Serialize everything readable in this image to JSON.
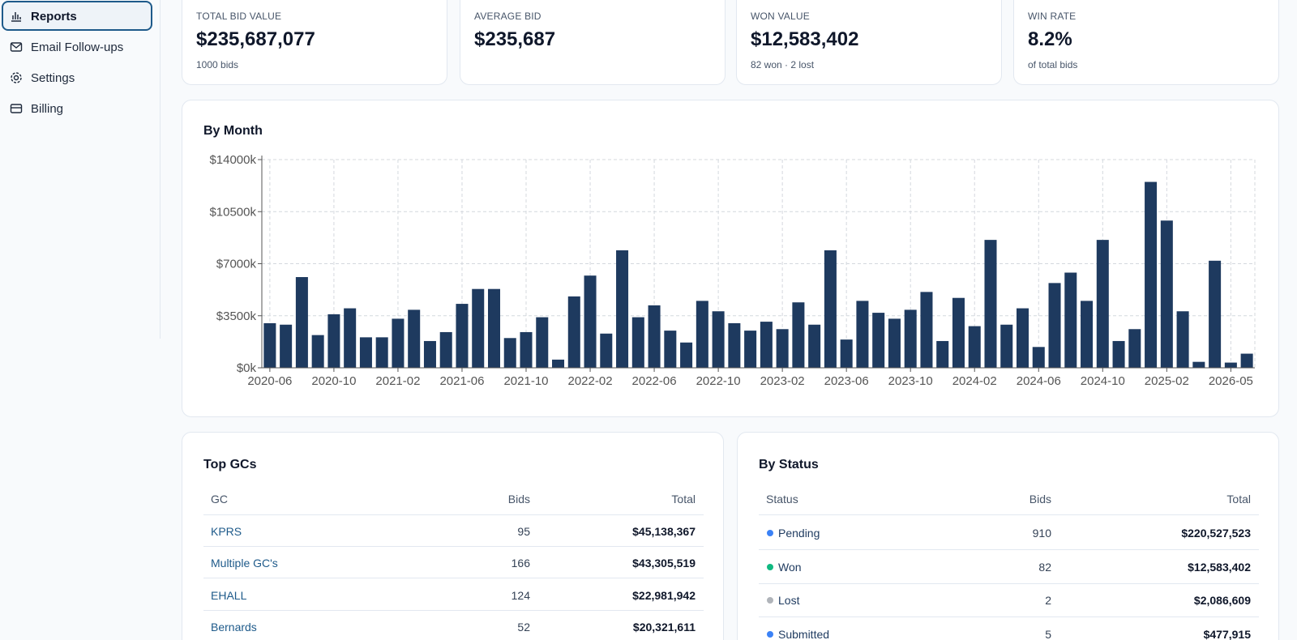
{
  "sidebar": {
    "items": [
      "Reports",
      "Email Follow-ups",
      "Settings",
      "Billing"
    ]
  },
  "stats": [
    {
      "label": "TOTAL BID VALUE",
      "value": "$235,687,077",
      "sub": "1000 bids"
    },
    {
      "label": "AVERAGE BID",
      "value": "$235,687"
    },
    {
      "label": "WON VALUE",
      "value": "$12,583,402",
      "sub": "82 won · 2 lost"
    },
    {
      "label": "WIN RATE",
      "value": "8.2%",
      "sub": "of total bids"
    }
  ],
  "chart_data": {
    "type": "bar",
    "title": "By Month",
    "color": "#1e3a5f",
    "grid": true,
    "categories": [
      "2020-06",
      null,
      null,
      null,
      "2020-10",
      null,
      null,
      null,
      "2021-02",
      null,
      null,
      null,
      "2021-06",
      null,
      null,
      null,
      "2021-10",
      null,
      null,
      null,
      "2022-02",
      null,
      null,
      null,
      "2022-06",
      null,
      null,
      null,
      "2022-10",
      null,
      null,
      null,
      "2023-02",
      null,
      null,
      null,
      "2023-06",
      null,
      null,
      null,
      "2023-10",
      null,
      null,
      null,
      "2024-02",
      null,
      null,
      null,
      "2024-06",
      null,
      null,
      null,
      "2024-10",
      null,
      null,
      null,
      "2025-02",
      null,
      null,
      null,
      "2026-05",
      null
    ],
    "values": [
      3000,
      2900,
      6100,
      2200,
      3600,
      4000,
      2050,
      2050,
      3300,
      3900,
      1800,
      2400,
      4300,
      5300,
      5300,
      2000,
      2400,
      3400,
      550,
      4800,
      6200,
      2300,
      7900,
      3400,
      4200,
      2500,
      1700,
      4500,
      3800,
      3000,
      2500,
      3100,
      2600,
      4400,
      2900,
      7900,
      1900,
      4500,
      3700,
      3300,
      3900,
      5100,
      1800,
      4700,
      2800,
      8600,
      2900,
      4000,
      1400,
      5700,
      6400,
      4500,
      8600,
      1800,
      2600,
      12500,
      9900,
      3800,
      400,
      7200,
      350,
      950
    ],
    "ylim": [
      0,
      14000
    ],
    "yticks": [
      {
        "value": 0,
        "label": "$0k"
      },
      {
        "value": 3500,
        "label": "$3500k"
      },
      {
        "value": 7000,
        "label": "$7000k"
      },
      {
        "value": 10500,
        "label": "$10500k"
      },
      {
        "value": 14000,
        "label": "$14000k"
      }
    ]
  },
  "top_gcs": {
    "title": "Top GCs",
    "columns": [
      "GC",
      "Bids",
      "Total"
    ],
    "rows": [
      [
        "KPRS",
        "95",
        "$45,138,367"
      ],
      [
        "Multiple GC's",
        "166",
        "$43,305,519"
      ],
      [
        "EHALL",
        "124",
        "$22,981,942"
      ],
      [
        "Bernards",
        "52",
        "$20,321,611"
      ]
    ]
  },
  "by_status": {
    "title": "By Status",
    "columns": [
      "Status",
      "Bids",
      "Total"
    ],
    "rows": [
      {
        "status": "Pending",
        "color": "#3b82f6",
        "bids": "910",
        "total": "$220,527,523"
      },
      {
        "status": "Won",
        "color": "#10b981",
        "bids": "82",
        "total": "$12,583,402"
      },
      {
        "status": "Lost",
        "color": "#b0b4ba",
        "bids": "2",
        "total": "$2,086,609"
      },
      {
        "status": "Submitted",
        "color": "#3b82f6",
        "bids": "5",
        "total": "$477,915"
      }
    ]
  }
}
